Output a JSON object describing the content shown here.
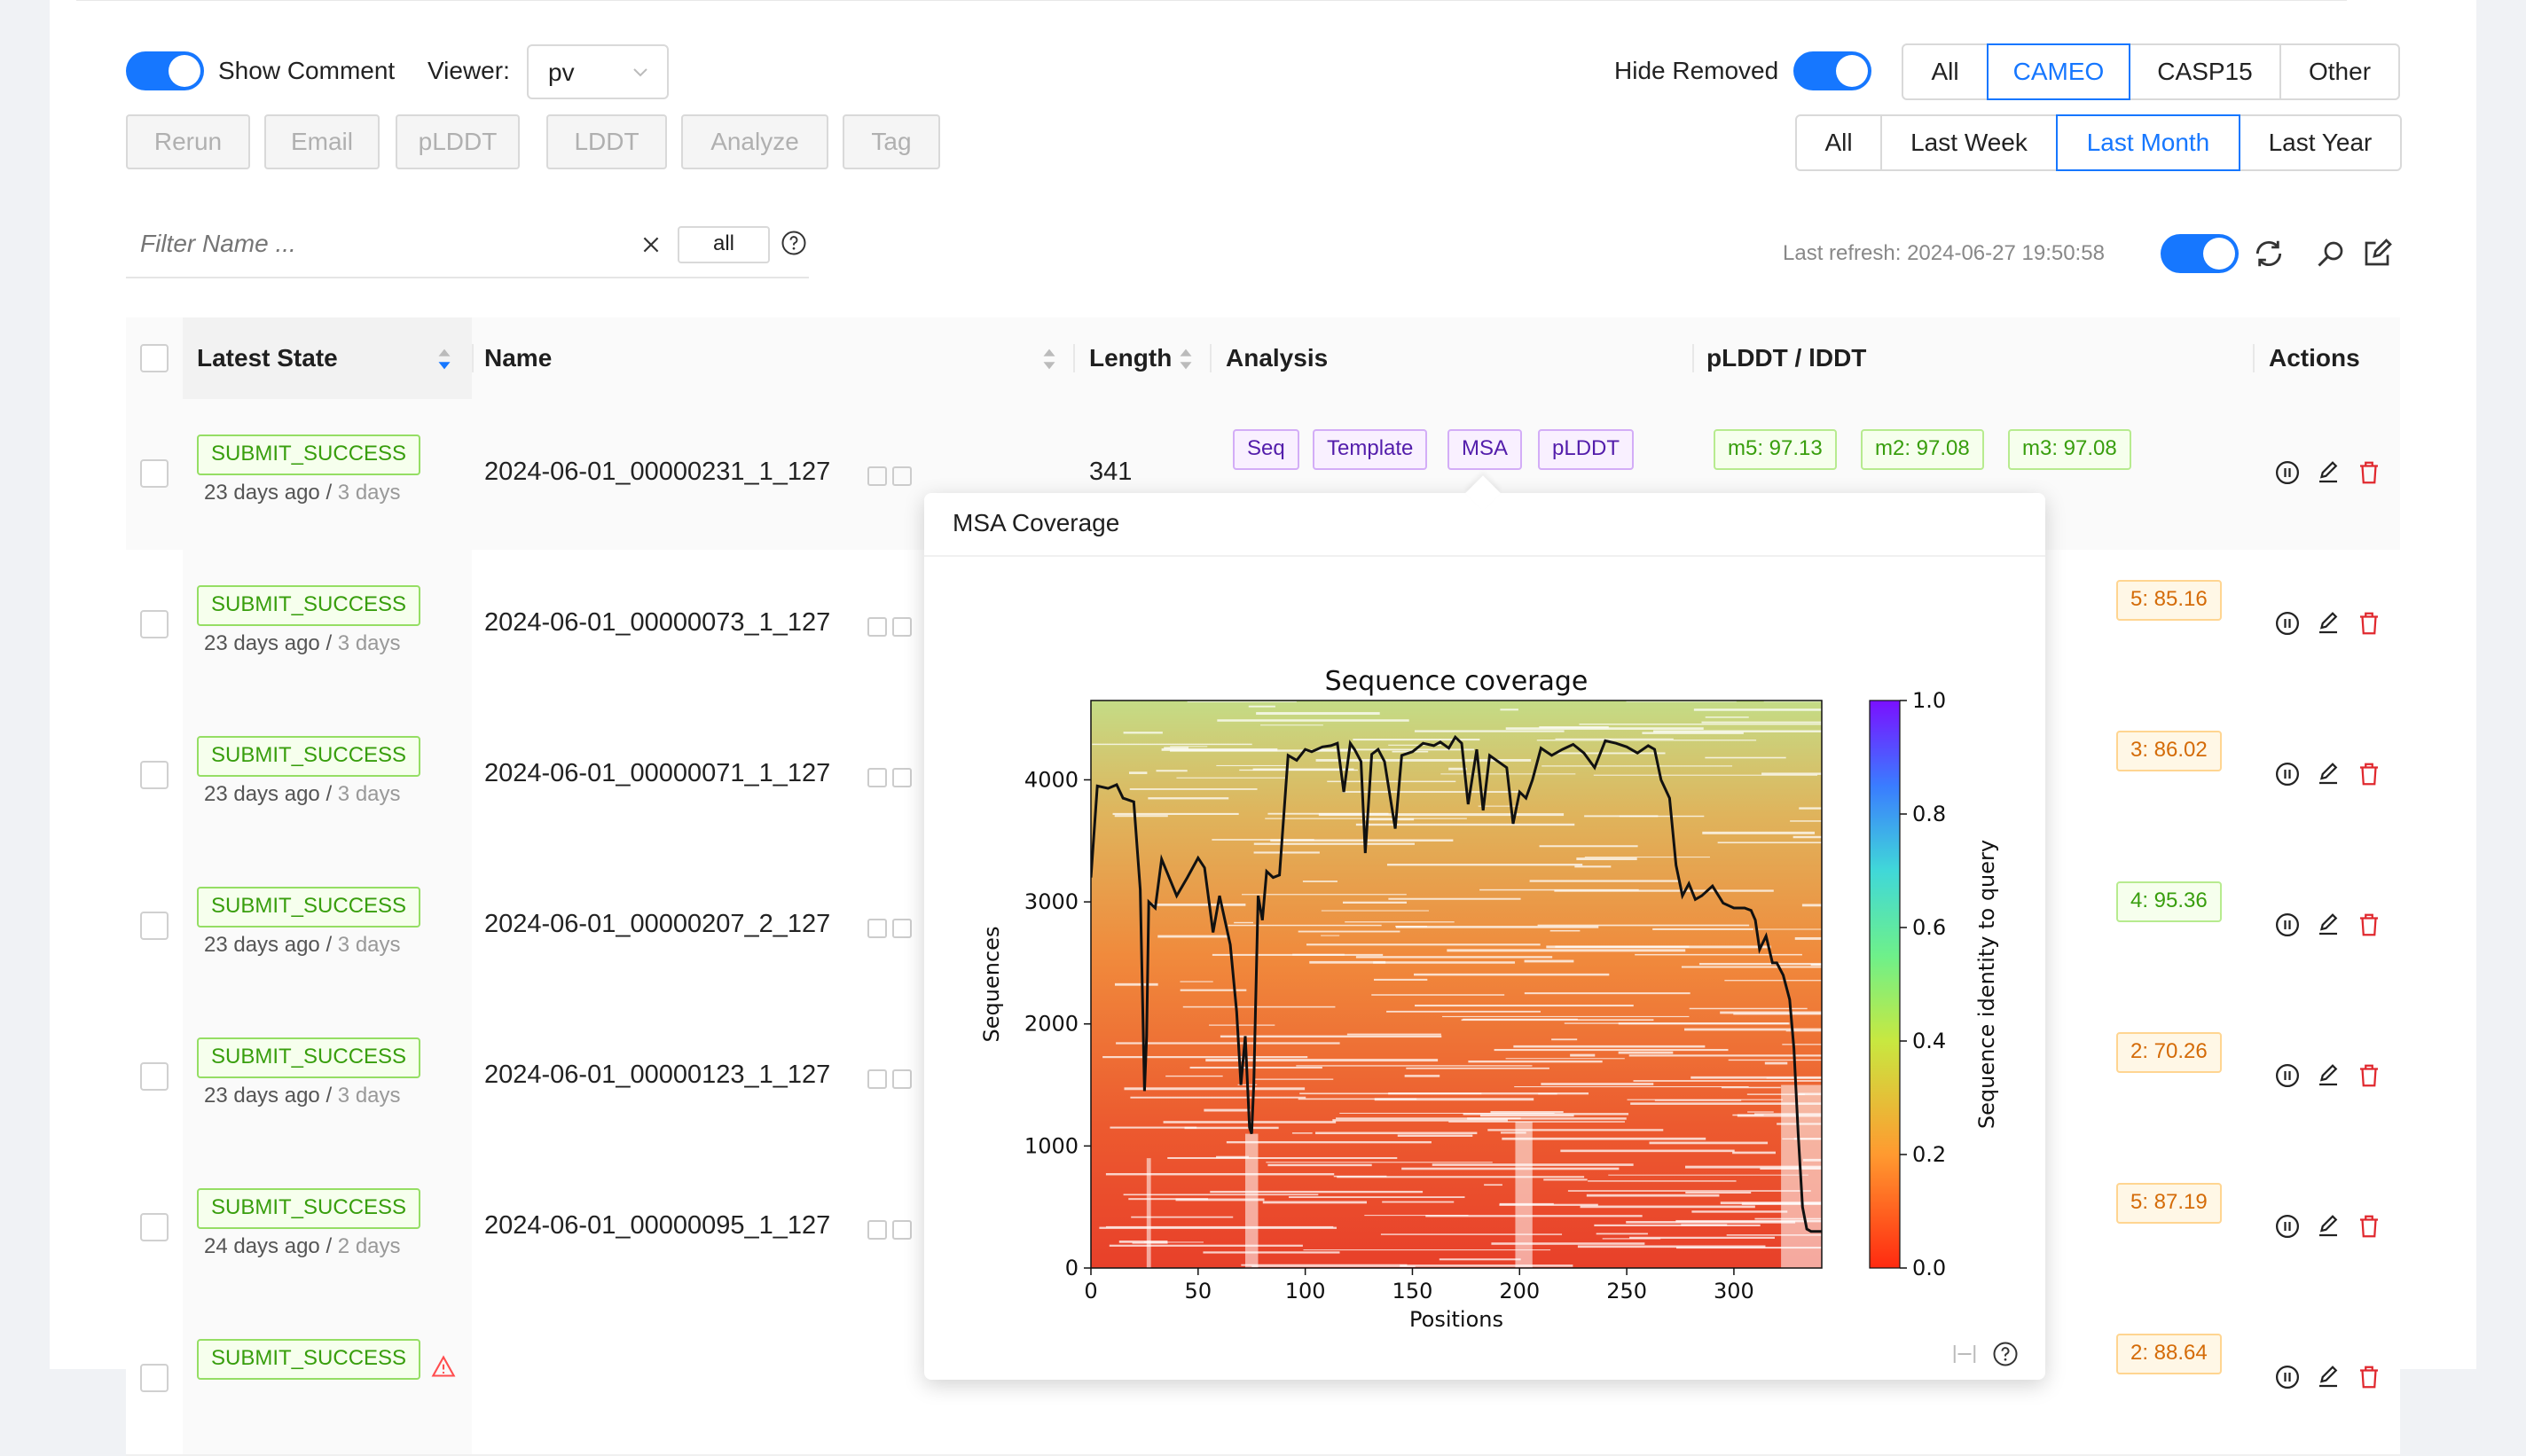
{
  "toolbar": {
    "show_comment_label": "Show Comment",
    "viewer_label": "Viewer:",
    "viewer_value": "pv",
    "hide_removed_label": "Hide Removed",
    "source_filters": [
      "All",
      "CAMEO",
      "CASP15",
      "Other"
    ],
    "source_active": "CAMEO",
    "time_filters": [
      "All",
      "Last Week",
      "Last Month",
      "Last Year"
    ],
    "time_active": "Last Month",
    "actions": [
      "Rerun",
      "Email",
      "pLDDT",
      "LDDT",
      "Analyze",
      "Tag"
    ]
  },
  "filter": {
    "placeholder": "Filter Name ...",
    "scope": "all",
    "last_refresh": "Last refresh: 2024-06-27 19:50:58"
  },
  "table": {
    "headers": {
      "state": "Latest State",
      "name": "Name",
      "length": "Length",
      "analysis": "Analysis",
      "plddt": "pLDDT / lDDT",
      "actions": "Actions"
    },
    "analysis_tags": [
      "Seq",
      "Template",
      "MSA",
      "pLDDT"
    ],
    "rows": [
      {
        "state": "SUBMIT_SUCCESS",
        "ago": "23 days ago",
        "dur": "3 days",
        "name": "2024-06-01_00000231_1_127",
        "length": "341",
        "scores": [
          "m5: 97.13",
          "m2: 97.08",
          "m3: 97.08"
        ]
      },
      {
        "state": "SUBMIT_SUCCESS",
        "ago": "23 days ago",
        "dur": "3 days",
        "name": "2024-06-01_00000073_1_127",
        "length": "",
        "scores": [
          "5: 85.16"
        ]
      },
      {
        "state": "SUBMIT_SUCCESS",
        "ago": "23 days ago",
        "dur": "3 days",
        "name": "2024-06-01_00000071_1_127",
        "length": "",
        "scores": [
          "3: 86.02"
        ]
      },
      {
        "state": "SUBMIT_SUCCESS",
        "ago": "23 days ago",
        "dur": "3 days",
        "name": "2024-06-01_00000207_2_127",
        "length": "",
        "scores": [
          "4: 95.36"
        ]
      },
      {
        "state": "SUBMIT_SUCCESS",
        "ago": "23 days ago",
        "dur": "3 days",
        "name": "2024-06-01_00000123_1_127",
        "length": "",
        "scores": [
          "2: 70.26"
        ]
      },
      {
        "state": "SUBMIT_SUCCESS",
        "ago": "24 days ago",
        "dur": "2 days",
        "name": "2024-06-01_00000095_1_127",
        "length": "",
        "scores": [
          "5: 87.19"
        ]
      },
      {
        "state": "SUBMIT_SUCCESS",
        "ago": "",
        "dur": "",
        "name": "",
        "length": "",
        "scores": [
          "2: 88.64"
        ]
      }
    ]
  },
  "popover": {
    "title": "MSA Coverage"
  },
  "chart_data": {
    "type": "heatmap",
    "title": "Sequence coverage",
    "xlabel": "Positions",
    "ylabel": "Sequences",
    "colorbar_label": "Sequence identity to query",
    "xlim": [
      0,
      341
    ],
    "ylim": [
      0,
      4650
    ],
    "xticks": [
      0,
      50,
      100,
      150,
      200,
      250,
      300
    ],
    "yticks": [
      0,
      1000,
      2000,
      3000,
      4000
    ],
    "cticks": [
      "0.0",
      "0.2",
      "0.4",
      "0.6",
      "0.8",
      "1.0"
    ],
    "coverage_line": {
      "x": [
        0,
        3,
        8,
        12,
        15,
        20,
        23,
        25,
        26,
        27,
        30,
        33,
        40,
        45,
        50,
        53,
        57,
        60,
        65,
        68,
        70,
        72,
        74,
        75,
        76,
        78,
        80,
        82,
        85,
        88,
        92,
        96,
        100,
        103,
        108,
        112,
        115,
        118,
        121,
        123,
        126,
        128,
        131,
        134,
        137,
        142,
        145,
        150,
        155,
        160,
        163,
        167,
        170,
        173,
        176,
        180,
        183,
        186,
        190,
        194,
        197,
        200,
        203,
        206,
        210,
        215,
        220,
        225,
        230,
        235,
        240,
        245,
        250,
        255,
        260,
        263,
        266,
        270,
        273,
        276,
        279,
        282,
        285,
        290,
        295,
        300,
        305,
        308,
        310,
        312,
        315,
        318,
        320,
        323,
        326,
        328,
        330,
        332,
        334,
        336,
        338,
        341
      ],
      "y": [
        3200,
        3950,
        3930,
        3960,
        3850,
        3820,
        3100,
        1450,
        1900,
        3000,
        2950,
        3350,
        3050,
        3200,
        3360,
        3280,
        2750,
        3050,
        2650,
        2100,
        1500,
        1900,
        1150,
        1100,
        1500,
        3050,
        2850,
        3250,
        3200,
        3220,
        4200,
        4160,
        4250,
        4230,
        4270,
        4280,
        4300,
        3900,
        4300,
        4250,
        4150,
        3400,
        4210,
        4250,
        4150,
        3600,
        4200,
        4230,
        4300,
        4280,
        4310,
        4260,
        4350,
        4300,
        3800,
        4250,
        3750,
        4200,
        4150,
        4100,
        3640,
        3900,
        3850,
        4000,
        4260,
        4200,
        4250,
        4290,
        4220,
        4100,
        4320,
        4300,
        4270,
        4220,
        4280,
        4250,
        4000,
        3850,
        3300,
        3050,
        3150,
        3020,
        3050,
        3130,
        2990,
        2950,
        2950,
        2930,
        2850,
        2610,
        2720,
        2500,
        2500,
        2400,
        2200,
        1800,
        1100,
        500,
        320,
        300,
        300,
        300
      ]
    }
  }
}
